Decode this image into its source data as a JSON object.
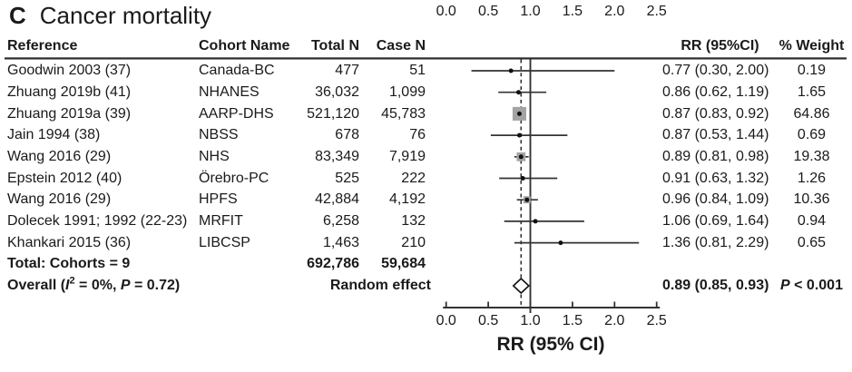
{
  "title": {
    "panel_label": "C",
    "text": "Cancer mortality"
  },
  "table": {
    "headers": {
      "reference": "Reference",
      "cohort": "Cohort Name",
      "total_n": "Total N",
      "case_n": "Case N",
      "rr": "RR (95%CI)",
      "weight": "% Weight"
    }
  },
  "chart_data": {
    "type": "forest",
    "title": "Cancer mortality",
    "panel_label": "C",
    "x_axis": {
      "label": "RR (95% CI)",
      "tick_labels": [
        "0.0",
        "0.5",
        "1.0",
        "1.5",
        "2.0",
        "2.5"
      ],
      "tick_values": [
        0,
        0.5,
        1.0,
        1.5,
        2.0,
        2.5
      ],
      "range": [
        0,
        2.5
      ],
      "reference_line": 1.0,
      "overall_dashed_line": 0.89,
      "top_labels": true,
      "grid": false
    },
    "studies": [
      {
        "reference": "Goodwin 2003 (37)",
        "cohort": "Canada-BC",
        "total_n": "477",
        "case_n": "51",
        "rr": 0.77,
        "ci_low": 0.3,
        "ci_high": 2.0,
        "rr_text": "0.77 (0.30, 2.00)",
        "weight": 0.19,
        "weight_text": "0.19"
      },
      {
        "reference": "Zhuang 2019b (41)",
        "cohort": "NHANES",
        "total_n": "36,032",
        "case_n": "1,099",
        "rr": 0.86,
        "ci_low": 0.62,
        "ci_high": 1.19,
        "rr_text": "0.86 (0.62, 1.19)",
        "weight": 1.65,
        "weight_text": "1.65"
      },
      {
        "reference": "Zhuang 2019a (39)",
        "cohort": "AARP-DHS",
        "total_n": "521,120",
        "case_n": "45,783",
        "rr": 0.87,
        "ci_low": 0.83,
        "ci_high": 0.92,
        "rr_text": "0.87 (0.83, 0.92)",
        "weight": 64.86,
        "weight_text": "64.86"
      },
      {
        "reference": "Jain 1994 (38)",
        "cohort": "NBSS",
        "total_n": "678",
        "case_n": "76",
        "rr": 0.87,
        "ci_low": 0.53,
        "ci_high": 1.44,
        "rr_text": "0.87 (0.53, 1.44)",
        "weight": 0.69,
        "weight_text": "0.69"
      },
      {
        "reference": "Wang 2016 (29)",
        "cohort": "NHS",
        "total_n": "83,349",
        "case_n": "7,919",
        "rr": 0.89,
        "ci_low": 0.81,
        "ci_high": 0.98,
        "rr_text": "0.89 (0.81, 0.98)",
        "weight": 19.38,
        "weight_text": "19.38"
      },
      {
        "reference": "Epstein 2012 (40)",
        "cohort": "Örebro-PC",
        "total_n": "525",
        "case_n": "222",
        "rr": 0.91,
        "ci_low": 0.63,
        "ci_high": 1.32,
        "rr_text": "0.91 (0.63, 1.32)",
        "weight": 1.26,
        "weight_text": "1.26"
      },
      {
        "reference": "Wang 2016 (29)",
        "cohort": "HPFS",
        "total_n": "42,884",
        "case_n": "4,192",
        "rr": 0.96,
        "ci_low": 0.84,
        "ci_high": 1.09,
        "rr_text": "0.96 (0.84, 1.09)",
        "weight": 10.36,
        "weight_text": "10.36"
      },
      {
        "reference": "Dolecek 1991; 1992 (22-23)",
        "cohort": "MRFIT",
        "total_n": "6,258",
        "case_n": "132",
        "rr": 1.06,
        "ci_low": 0.69,
        "ci_high": 1.64,
        "rr_text": "1.06 (0.69, 1.64)",
        "weight": 0.94,
        "weight_text": "0.94"
      },
      {
        "reference": "Khankari 2015 (36)",
        "cohort": "LIBCSP",
        "total_n": "1,463",
        "case_n": "210",
        "rr": 1.36,
        "ci_low": 0.81,
        "ci_high": 2.29,
        "rr_text": "1.36 (0.81, 2.29)",
        "weight": 0.65,
        "weight_text": "0.65"
      }
    ],
    "total_row": {
      "label": "Total: Cohorts = 9",
      "total_n": "692,786",
      "case_n": "59,684"
    },
    "overall_row": {
      "label_segments": [
        {
          "t": "Overall ("
        },
        {
          "t": "I",
          "i": true
        },
        {
          "t": "2",
          "sup": true
        },
        {
          "t": " = 0%, "
        },
        {
          "t": "P",
          "i": true
        },
        {
          "t": " = 0.72)"
        }
      ],
      "method": "Random effect",
      "rr": 0.89,
      "ci_low": 0.85,
      "ci_high": 0.93,
      "rr_text": "0.89 (0.85, 0.93)",
      "p_segments": [
        {
          "t": "P",
          "i": true
        },
        {
          "t": " < 0.001"
        }
      ]
    },
    "colors": {
      "line": "#333333",
      "weight_square": "#a3a3a3",
      "point": "#111111",
      "diamond_fill": "#ffffff",
      "text": "#1a1a1a"
    }
  }
}
